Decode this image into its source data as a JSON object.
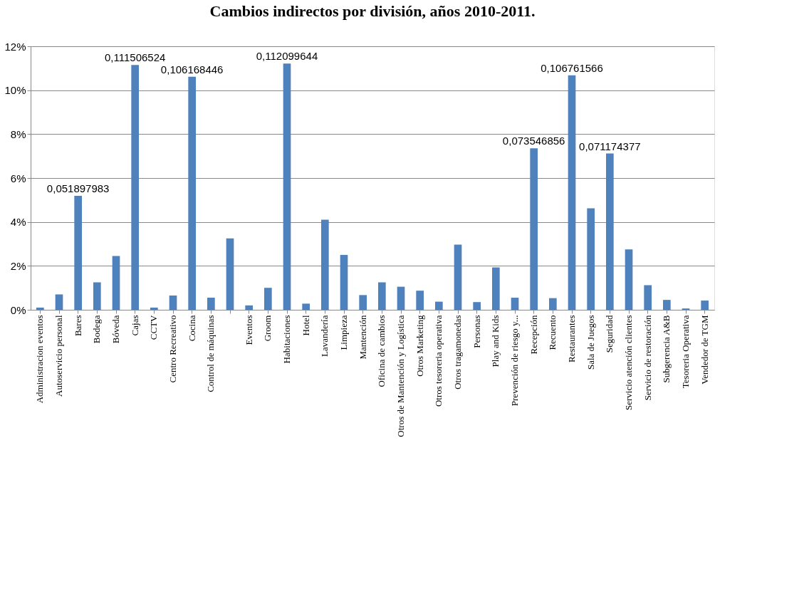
{
  "chart_data": {
    "type": "bar",
    "title": "Cambios  indirectos por división, años 2010-2011.",
    "categories": [
      "Administracion eventos",
      "Autoservicio personal",
      "Bares",
      "Bodega",
      "Bóveda",
      "Cajas",
      "CCTV",
      "Centro Recreativo",
      "Cocina",
      "Control de máquinas",
      null,
      "Eventos",
      "Groom",
      "Habitaciones",
      "Hotel",
      "Lavandería",
      "Limpieza",
      "Mantención",
      "Oficina de cambios",
      "Otros de Mantención y Logística",
      "Otros Marketing",
      "Otros tesoreria operativa",
      "Otros tragamonedas",
      "Personas",
      "Play and Kids",
      "Prevención de riesgo y...",
      "Recepción",
      "Recuento",
      "Restaurantes",
      "Sala de Juegos",
      "Seguridad",
      "Servicio atención clientes",
      "Servicio de restoración",
      "Subgerencia A&B",
      "Tesoreria Operativa",
      "Vendedor de TGM"
    ],
    "values": [
      0.001,
      0.007,
      0.051897983,
      0.0125,
      0.0245,
      0.111506524,
      0.001,
      0.0065,
      0.106168446,
      0.0055,
      0.0325,
      0.002,
      0.01,
      0.112099644,
      0.0028,
      0.041,
      0.025,
      0.0067,
      0.0125,
      0.0105,
      0.0087,
      0.0037,
      0.0297,
      0.0035,
      0.0193,
      0.0055,
      0.073546856,
      0.0053,
      0.106761566,
      0.0462,
      0.071174377,
      0.0275,
      0.0112,
      0.0045,
      0.0006,
      0.0042
    ],
    "value_labels": [
      null,
      null,
      "0,051897983",
      null,
      null,
      "0,111506524",
      null,
      null,
      "0,106168446",
      null,
      null,
      null,
      null,
      "0,112099644",
      null,
      null,
      null,
      null,
      null,
      null,
      null,
      null,
      null,
      null,
      null,
      null,
      "0,073546856",
      null,
      "0,106761566",
      null,
      "0,071174377",
      null,
      null,
      null,
      null,
      null
    ],
    "color": "#4f81bd",
    "ylim": [
      0,
      0.12
    ],
    "yticks": [
      {
        "value": 0,
        "label": "0%"
      },
      {
        "value": 0.02,
        "label": "2%"
      },
      {
        "value": 0.04,
        "label": "4%"
      },
      {
        "value": 0.06,
        "label": "6%"
      },
      {
        "value": 0.08,
        "label": "8%"
      },
      {
        "value": 0.1,
        "label": "10%"
      },
      {
        "value": 0.12,
        "label": "12%"
      }
    ],
    "grid": "y"
  }
}
